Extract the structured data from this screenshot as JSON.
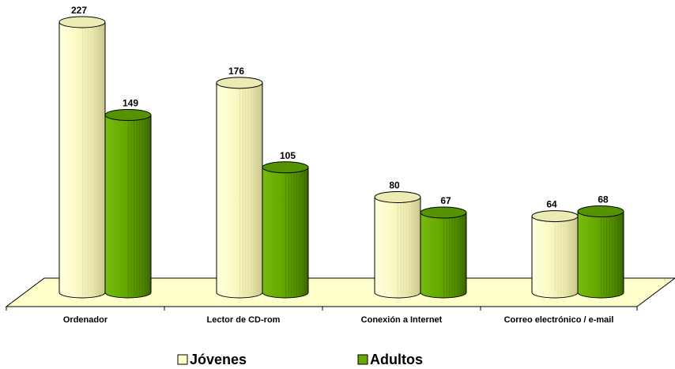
{
  "chart_data": {
    "type": "bar",
    "style": "3d-cylinder",
    "categories": [
      "Ordenador",
      "Lector de CD-rom",
      "Conexión a Internet",
      "Correo electrónico / e-mail"
    ],
    "series": [
      {
        "name": "Jóvenes",
        "values": [
          227,
          176,
          80,
          64
        ],
        "color": "#ffffcc"
      },
      {
        "name": "Adultos",
        "values": [
          149,
          105,
          67,
          68
        ],
        "color": "#66aa00"
      }
    ],
    "data_labels": true,
    "legend": "bottom",
    "grid": false,
    "ylim": [
      0,
      227
    ]
  },
  "colors": {
    "floor": "#ffffcc",
    "jovenes": "#ffffcc",
    "adultos": "#66aa00"
  }
}
